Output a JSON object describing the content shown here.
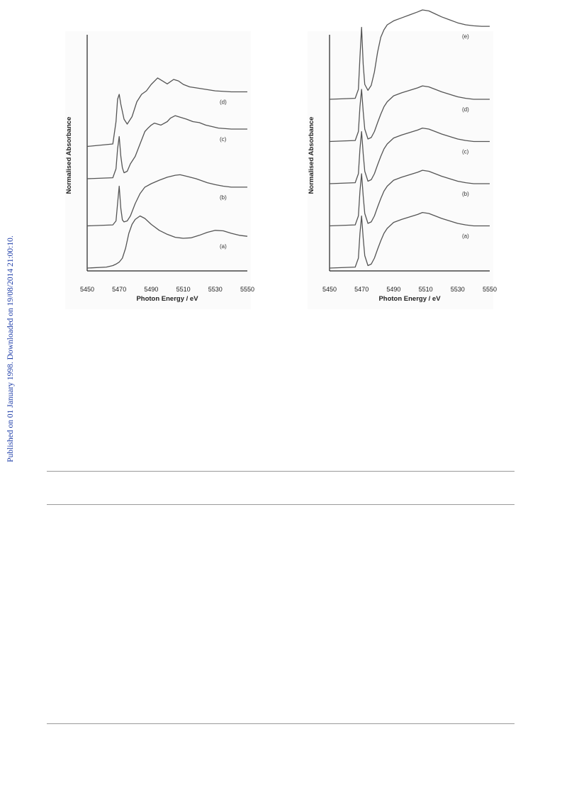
{
  "side_note": "Published on 01 January 1998. Downloaded on 19/08/2014 21:00:10.",
  "colors": {
    "side_note": "#1f3ea8",
    "curve": "#555555",
    "axis": "#222222",
    "rule": "#9a9a9a"
  },
  "chart_data": [
    {
      "type": "line",
      "xlabel": "Photon Energy / eV",
      "ylabel": "Normalised Absorbance",
      "xlim": [
        5450,
        5550
      ],
      "xticks": [
        5450,
        5470,
        5490,
        5510,
        5530,
        5550
      ],
      "yticks_shown": false,
      "stacked_offset_spectra": true,
      "series": [
        {
          "name": "(a)",
          "offset": 0.0,
          "x": [
            5450,
            5462,
            5466,
            5468,
            5470,
            5472,
            5474,
            5476,
            5478,
            5480,
            5483,
            5486,
            5490,
            5495,
            5500,
            5505,
            5510,
            5515,
            5520,
            5525,
            5530,
            5535,
            5540,
            5545,
            5550
          ],
          "y": [
            0.0,
            0.02,
            0.05,
            0.08,
            0.12,
            0.2,
            0.4,
            0.7,
            0.88,
            0.98,
            1.05,
            1.0,
            0.88,
            0.76,
            0.68,
            0.62,
            0.6,
            0.61,
            0.66,
            0.72,
            0.76,
            0.75,
            0.7,
            0.66,
            0.64
          ]
        },
        {
          "name": "(b)",
          "offset": 0.85,
          "x": [
            5450,
            5466,
            5468,
            5469,
            5470,
            5471,
            5472,
            5473,
            5475,
            5477,
            5480,
            5483,
            5486,
            5490,
            5495,
            5500,
            5505,
            5508,
            5512,
            5518,
            5525,
            5530,
            5535,
            5540,
            5545,
            5550
          ],
          "y": [
            0.0,
            0.02,
            0.1,
            0.45,
            0.8,
            0.35,
            0.12,
            0.08,
            0.1,
            0.2,
            0.45,
            0.65,
            0.78,
            0.85,
            0.92,
            0.98,
            1.02,
            1.03,
            1.0,
            0.95,
            0.87,
            0.83,
            0.8,
            0.78,
            0.78,
            0.78
          ]
        },
        {
          "name": "(c)",
          "offset": 1.8,
          "x": [
            5450,
            5466,
            5468,
            5469,
            5470,
            5471,
            5472,
            5473,
            5475,
            5477,
            5480,
            5483,
            5486,
            5488,
            5490,
            5492,
            5494,
            5496,
            5500,
            5502,
            5505,
            5508,
            5512,
            5516,
            5520,
            5524,
            5528,
            5532,
            5540,
            5550
          ],
          "y": [
            0.0,
            0.02,
            0.2,
            0.6,
            0.85,
            0.45,
            0.22,
            0.12,
            0.15,
            0.3,
            0.45,
            0.7,
            0.95,
            1.02,
            1.08,
            1.12,
            1.1,
            1.08,
            1.15,
            1.22,
            1.27,
            1.24,
            1.2,
            1.15,
            1.13,
            1.08,
            1.05,
            1.02,
            1.0,
            1.0
          ]
        },
        {
          "name": "(d)",
          "offset": 2.45,
          "x": [
            5450,
            5466,
            5468,
            5469,
            5470,
            5471,
            5473,
            5475,
            5478,
            5481,
            5484,
            5487,
            5490,
            5494,
            5497,
            5500,
            5504,
            5507,
            5510,
            5514,
            5518,
            5524,
            5530,
            5540,
            5550
          ],
          "y": [
            0.0,
            0.05,
            0.5,
            0.95,
            1.05,
            0.85,
            0.55,
            0.45,
            0.6,
            0.9,
            1.05,
            1.12,
            1.25,
            1.38,
            1.32,
            1.26,
            1.35,
            1.32,
            1.25,
            1.2,
            1.18,
            1.15,
            1.12,
            1.1,
            1.1
          ]
        }
      ]
    },
    {
      "type": "line",
      "xlabel": "Photon Energy / eV",
      "ylabel": "Normalised Absorbance",
      "xlim": [
        5450,
        5550
      ],
      "xticks": [
        5450,
        5470,
        5490,
        5510,
        5530,
        5550
      ],
      "yticks_shown": false,
      "stacked_offset_spectra": true,
      "series": [
        {
          "name": "(a)",
          "offset": 0.0,
          "x": [
            5450,
            5466,
            5468,
            5469,
            5470,
            5471,
            5472,
            5474,
            5476,
            5478,
            5480,
            5482,
            5484,
            5486,
            5490,
            5495,
            5500,
            5505,
            5508,
            5512,
            5516,
            5520,
            5525,
            5530,
            5535,
            5540,
            5545,
            5550
          ],
          "y": [
            0.0,
            0.02,
            0.2,
            0.7,
            1.05,
            0.6,
            0.25,
            0.05,
            0.08,
            0.2,
            0.38,
            0.55,
            0.7,
            0.8,
            0.92,
            0.98,
            1.03,
            1.08,
            1.12,
            1.1,
            1.05,
            1.0,
            0.95,
            0.9,
            0.87,
            0.85,
            0.85,
            0.85
          ]
        },
        {
          "name": "(b)",
          "offset": 0.85,
          "x": [
            5450,
            5466,
            5468,
            5469,
            5470,
            5471,
            5472,
            5474,
            5476,
            5478,
            5480,
            5482,
            5484,
            5486,
            5490,
            5495,
            5500,
            5505,
            5508,
            5512,
            5516,
            5520,
            5525,
            5530,
            5535,
            5540,
            5545,
            5550
          ],
          "y": [
            0.0,
            0.02,
            0.2,
            0.7,
            1.05,
            0.6,
            0.25,
            0.05,
            0.08,
            0.2,
            0.38,
            0.55,
            0.7,
            0.8,
            0.92,
            0.98,
            1.03,
            1.08,
            1.12,
            1.1,
            1.05,
            1.0,
            0.95,
            0.9,
            0.87,
            0.85,
            0.85,
            0.85
          ]
        },
        {
          "name": "(c)",
          "offset": 1.7,
          "x": [
            5450,
            5466,
            5468,
            5469,
            5470,
            5471,
            5472,
            5474,
            5476,
            5478,
            5480,
            5482,
            5484,
            5486,
            5490,
            5495,
            5500,
            5505,
            5508,
            5512,
            5516,
            5520,
            5525,
            5530,
            5535,
            5540,
            5545,
            5550
          ],
          "y": [
            0.0,
            0.02,
            0.2,
            0.7,
            1.05,
            0.6,
            0.25,
            0.05,
            0.08,
            0.2,
            0.38,
            0.55,
            0.7,
            0.8,
            0.92,
            0.98,
            1.03,
            1.08,
            1.12,
            1.1,
            1.05,
            1.0,
            0.95,
            0.9,
            0.87,
            0.85,
            0.85,
            0.85
          ]
        },
        {
          "name": "(d)",
          "offset": 2.55,
          "x": [
            5450,
            5466,
            5468,
            5469,
            5470,
            5471,
            5472,
            5474,
            5476,
            5478,
            5480,
            5482,
            5484,
            5486,
            5490,
            5495,
            5500,
            5505,
            5508,
            5512,
            5516,
            5520,
            5525,
            5530,
            5535,
            5540,
            5545,
            5550
          ],
          "y": [
            0.0,
            0.02,
            0.2,
            0.7,
            1.05,
            0.6,
            0.25,
            0.05,
            0.08,
            0.2,
            0.38,
            0.55,
            0.7,
            0.8,
            0.92,
            0.98,
            1.03,
            1.08,
            1.12,
            1.1,
            1.05,
            1.0,
            0.95,
            0.9,
            0.87,
            0.85,
            0.85,
            0.85
          ]
        },
        {
          "name": "(e)",
          "offset": 3.4,
          "x": [
            5450,
            5466,
            5468,
            5469,
            5470,
            5471,
            5472,
            5474,
            5476,
            5478,
            5480,
            5482,
            5484,
            5486,
            5490,
            5495,
            5500,
            5505,
            5508,
            5512,
            5516,
            5520,
            5525,
            5530,
            5535,
            5540,
            5545,
            5550
          ],
          "y": [
            0.0,
            0.02,
            0.2,
            0.85,
            1.45,
            0.7,
            0.3,
            0.18,
            0.28,
            0.55,
            0.95,
            1.25,
            1.4,
            1.5,
            1.58,
            1.64,
            1.7,
            1.76,
            1.8,
            1.78,
            1.72,
            1.66,
            1.6,
            1.54,
            1.5,
            1.48,
            1.47,
            1.47
          ]
        }
      ]
    }
  ]
}
